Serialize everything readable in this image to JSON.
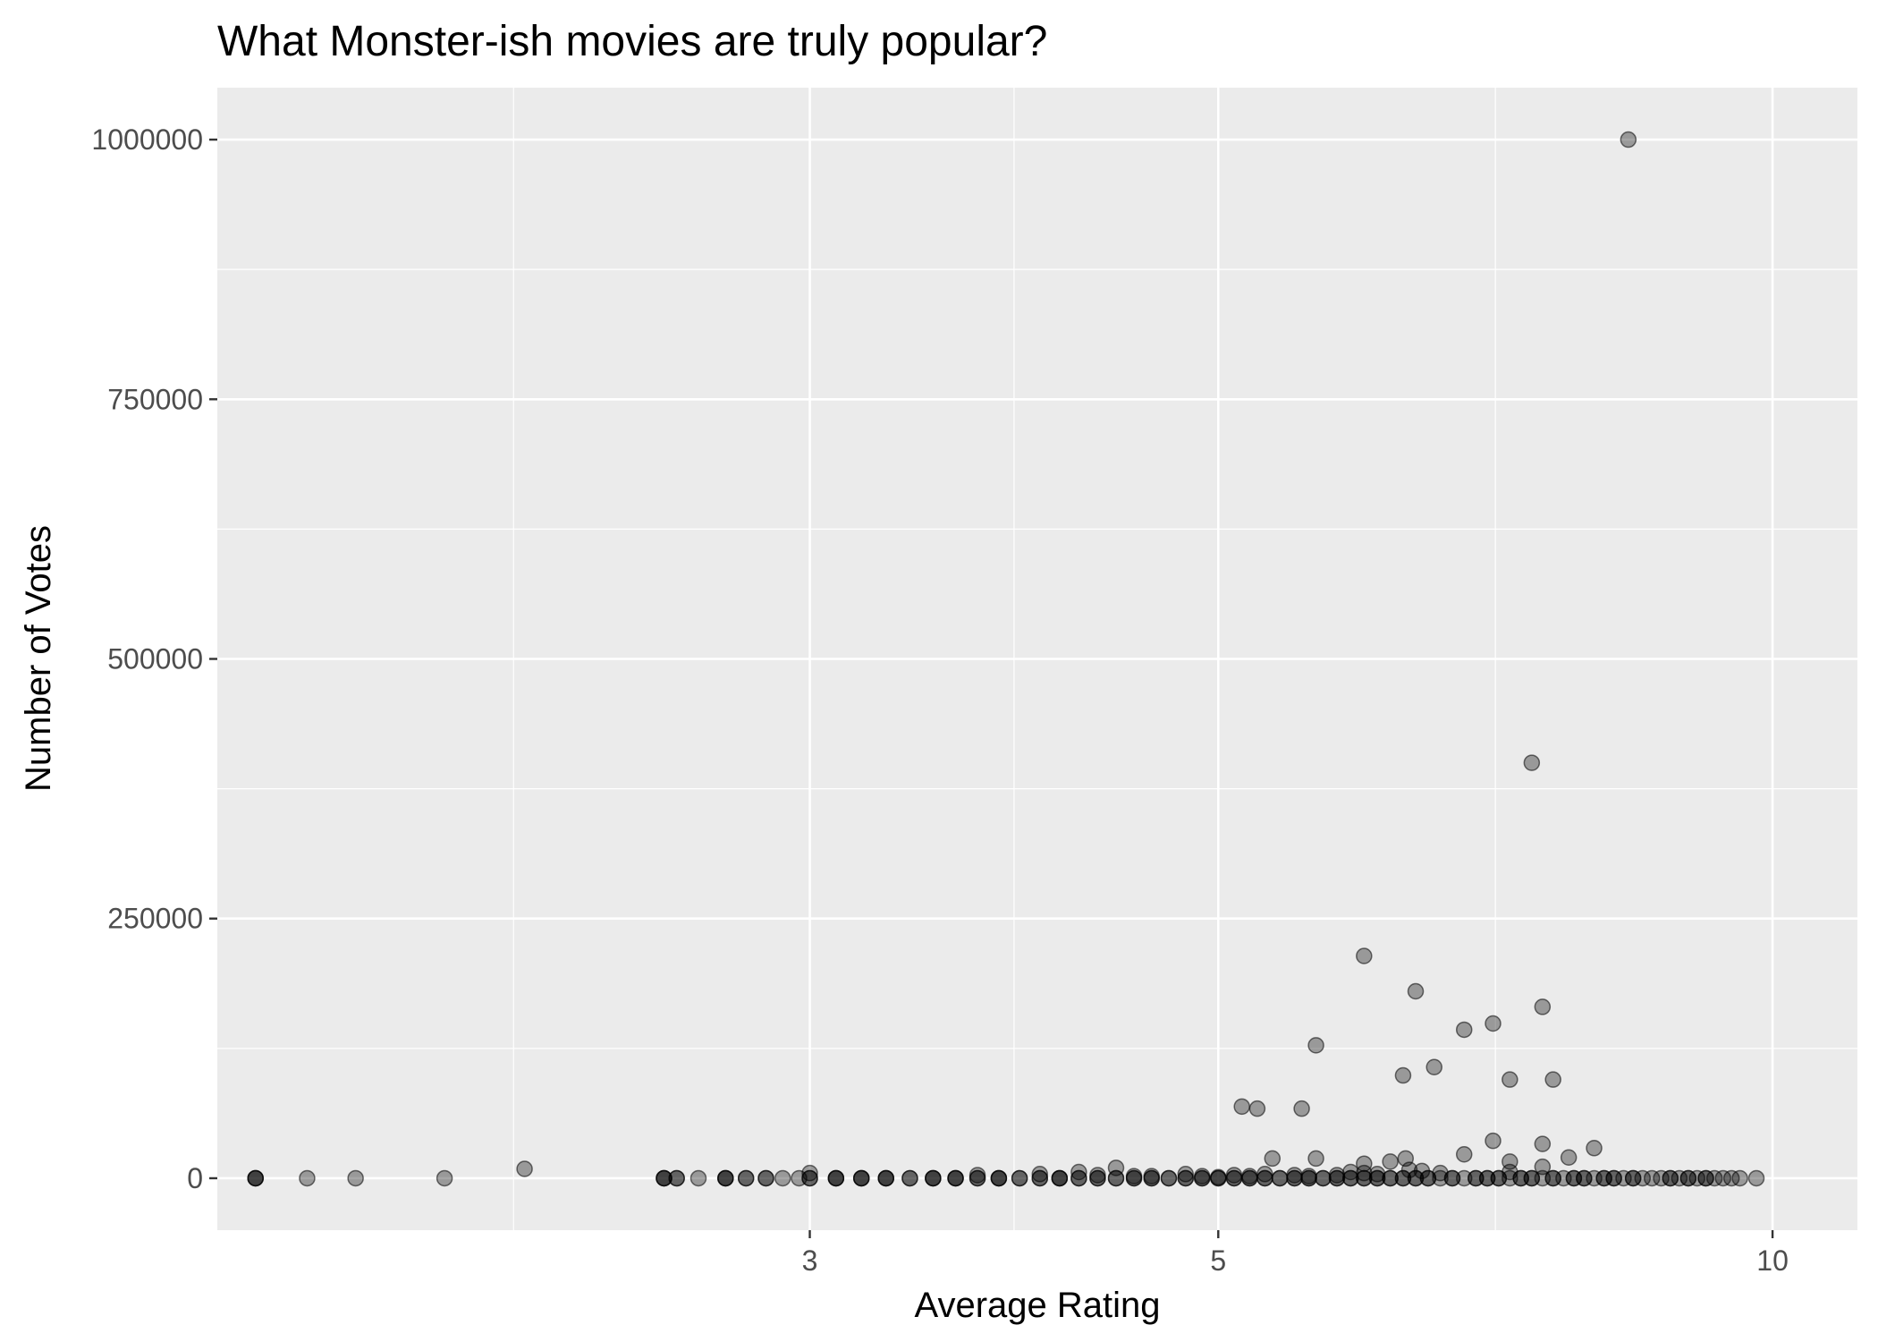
{
  "chart_data": {
    "type": "scatter",
    "title": "What Monster-ish movies are truly popular?",
    "xlabel": "Average Rating",
    "ylabel": "Number of Votes",
    "x_scale": "log10",
    "xlim": [
      1.43,
      11.12
    ],
    "ylim": [
      -50000,
      1050000
    ],
    "x_ticks": [
      3,
      5,
      10
    ],
    "x_tick_labels": [
      "3",
      "5",
      "10"
    ],
    "y_ticks": [
      0,
      250000,
      500000,
      750000,
      1000000
    ],
    "y_tick_labels": [
      "0",
      "250000",
      "500000",
      "750000",
      "1000000"
    ],
    "grid": true,
    "legend": "none",
    "point_color": "#000000",
    "point_alpha": 0.35,
    "panel_background": "#ebebeb",
    "grid_color": "#ffffff",
    "points": [
      {
        "x": 1.5,
        "y": 0
      },
      {
        "x": 1.5,
        "y": 0
      },
      {
        "x": 1.5,
        "y": 0
      },
      {
        "x": 1.6,
        "y": 0
      },
      {
        "x": 1.7,
        "y": 0
      },
      {
        "x": 1.9,
        "y": 0
      },
      {
        "x": 2.1,
        "y": 9000
      },
      {
        "x": 2.5,
        "y": 0
      },
      {
        "x": 2.5,
        "y": 0
      },
      {
        "x": 2.5,
        "y": 0
      },
      {
        "x": 2.54,
        "y": 0
      },
      {
        "x": 2.54,
        "y": 0
      },
      {
        "x": 2.61,
        "y": 0
      },
      {
        "x": 2.7,
        "y": 0
      },
      {
        "x": 2.7,
        "y": 0
      },
      {
        "x": 2.7,
        "y": 0
      },
      {
        "x": 2.77,
        "y": 0
      },
      {
        "x": 2.77,
        "y": 0
      },
      {
        "x": 2.84,
        "y": 0
      },
      {
        "x": 2.84,
        "y": 0
      },
      {
        "x": 2.9,
        "y": 0
      },
      {
        "x": 2.96,
        "y": 0
      },
      {
        "x": 3.0,
        "y": 0
      },
      {
        "x": 3.0,
        "y": 0
      },
      {
        "x": 3.0,
        "y": 5000
      },
      {
        "x": 3.1,
        "y": 0
      },
      {
        "x": 3.1,
        "y": 0
      },
      {
        "x": 3.1,
        "y": 0
      },
      {
        "x": 3.2,
        "y": 0
      },
      {
        "x": 3.2,
        "y": 0
      },
      {
        "x": 3.2,
        "y": 0
      },
      {
        "x": 3.3,
        "y": 0
      },
      {
        "x": 3.3,
        "y": 0
      },
      {
        "x": 3.3,
        "y": 0
      },
      {
        "x": 3.4,
        "y": 0
      },
      {
        "x": 3.4,
        "y": 0
      },
      {
        "x": 3.5,
        "y": 0
      },
      {
        "x": 3.5,
        "y": 0
      },
      {
        "x": 3.5,
        "y": 0
      },
      {
        "x": 3.6,
        "y": 0
      },
      {
        "x": 3.6,
        "y": 0
      },
      {
        "x": 3.6,
        "y": 0
      },
      {
        "x": 3.7,
        "y": 0
      },
      {
        "x": 3.7,
        "y": 0
      },
      {
        "x": 3.7,
        "y": 3000
      },
      {
        "x": 3.8,
        "y": 0
      },
      {
        "x": 3.8,
        "y": 0
      },
      {
        "x": 3.8,
        "y": 0
      },
      {
        "x": 3.9,
        "y": 0
      },
      {
        "x": 3.9,
        "y": 0
      },
      {
        "x": 4.0,
        "y": 0
      },
      {
        "x": 4.0,
        "y": 0
      },
      {
        "x": 4.0,
        "y": 4000
      },
      {
        "x": 4.1,
        "y": 0
      },
      {
        "x": 4.1,
        "y": 0
      },
      {
        "x": 4.1,
        "y": 0
      },
      {
        "x": 4.2,
        "y": 0
      },
      {
        "x": 4.2,
        "y": 0
      },
      {
        "x": 4.2,
        "y": 6000
      },
      {
        "x": 4.3,
        "y": 0
      },
      {
        "x": 4.3,
        "y": 0
      },
      {
        "x": 4.3,
        "y": 3000
      },
      {
        "x": 4.4,
        "y": 0
      },
      {
        "x": 4.4,
        "y": 0
      },
      {
        "x": 4.4,
        "y": 10000
      },
      {
        "x": 4.5,
        "y": 0
      },
      {
        "x": 4.5,
        "y": 0
      },
      {
        "x": 4.5,
        "y": 2000
      },
      {
        "x": 4.6,
        "y": 0
      },
      {
        "x": 4.6,
        "y": 0
      },
      {
        "x": 4.6,
        "y": 2000
      },
      {
        "x": 4.7,
        "y": 0
      },
      {
        "x": 4.7,
        "y": 0
      },
      {
        "x": 4.8,
        "y": 0
      },
      {
        "x": 4.8,
        "y": 0
      },
      {
        "x": 4.8,
        "y": 4000
      },
      {
        "x": 4.9,
        "y": 0
      },
      {
        "x": 4.9,
        "y": 0
      },
      {
        "x": 4.9,
        "y": 2000
      },
      {
        "x": 5.0,
        "y": 0
      },
      {
        "x": 5.0,
        "y": 0
      },
      {
        "x": 5.0,
        "y": 1000
      },
      {
        "x": 5.1,
        "y": 0
      },
      {
        "x": 5.1,
        "y": 0
      },
      {
        "x": 5.1,
        "y": 3000
      },
      {
        "x": 5.2,
        "y": 0
      },
      {
        "x": 5.2,
        "y": 0
      },
      {
        "x": 5.2,
        "y": 2000
      },
      {
        "x": 5.15,
        "y": 69000
      },
      {
        "x": 5.25,
        "y": 67000
      },
      {
        "x": 5.3,
        "y": 0
      },
      {
        "x": 5.3,
        "y": 0
      },
      {
        "x": 5.3,
        "y": 4000
      },
      {
        "x": 5.35,
        "y": 19000
      },
      {
        "x": 5.4,
        "y": 0
      },
      {
        "x": 5.4,
        "y": 0
      },
      {
        "x": 5.5,
        "y": 0
      },
      {
        "x": 5.5,
        "y": 0
      },
      {
        "x": 5.5,
        "y": 3000
      },
      {
        "x": 5.55,
        "y": 67000
      },
      {
        "x": 5.6,
        "y": 0
      },
      {
        "x": 5.6,
        "y": 0
      },
      {
        "x": 5.6,
        "y": 2000
      },
      {
        "x": 5.65,
        "y": 128000
      },
      {
        "x": 5.65,
        "y": 19000
      },
      {
        "x": 5.7,
        "y": 0
      },
      {
        "x": 5.7,
        "y": 0
      },
      {
        "x": 5.8,
        "y": 0
      },
      {
        "x": 5.8,
        "y": 0
      },
      {
        "x": 5.8,
        "y": 3000
      },
      {
        "x": 5.9,
        "y": 0
      },
      {
        "x": 5.9,
        "y": 0
      },
      {
        "x": 5.9,
        "y": 6000
      },
      {
        "x": 6.0,
        "y": 0
      },
      {
        "x": 6.0,
        "y": 0
      },
      {
        "x": 6.0,
        "y": 214000
      },
      {
        "x": 6.0,
        "y": 14000
      },
      {
        "x": 6.0,
        "y": 5000
      },
      {
        "x": 6.1,
        "y": 0
      },
      {
        "x": 6.1,
        "y": 0
      },
      {
        "x": 6.1,
        "y": 4000
      },
      {
        "x": 6.2,
        "y": 0
      },
      {
        "x": 6.2,
        "y": 0
      },
      {
        "x": 6.2,
        "y": 16000
      },
      {
        "x": 6.3,
        "y": 0
      },
      {
        "x": 6.3,
        "y": 0
      },
      {
        "x": 6.3,
        "y": 99000
      },
      {
        "x": 6.32,
        "y": 19000
      },
      {
        "x": 6.35,
        "y": 8000
      },
      {
        "x": 6.4,
        "y": 0
      },
      {
        "x": 6.4,
        "y": 0
      },
      {
        "x": 6.4,
        "y": 180000
      },
      {
        "x": 6.45,
        "y": 7000
      },
      {
        "x": 6.5,
        "y": 0
      },
      {
        "x": 6.5,
        "y": 0
      },
      {
        "x": 6.55,
        "y": 107000
      },
      {
        "x": 6.6,
        "y": 0
      },
      {
        "x": 6.6,
        "y": 5000
      },
      {
        "x": 6.7,
        "y": 0
      },
      {
        "x": 6.7,
        "y": 0
      },
      {
        "x": 6.8,
        "y": 0
      },
      {
        "x": 6.8,
        "y": 143000
      },
      {
        "x": 6.8,
        "y": 23000
      },
      {
        "x": 6.9,
        "y": 0
      },
      {
        "x": 6.9,
        "y": 0
      },
      {
        "x": 7.0,
        "y": 0
      },
      {
        "x": 7.0,
        "y": 0
      },
      {
        "x": 7.05,
        "y": 149000
      },
      {
        "x": 7.05,
        "y": 36000
      },
      {
        "x": 7.1,
        "y": 0
      },
      {
        "x": 7.1,
        "y": 0
      },
      {
        "x": 7.2,
        "y": 0
      },
      {
        "x": 7.2,
        "y": 95000
      },
      {
        "x": 7.2,
        "y": 16000
      },
      {
        "x": 7.2,
        "y": 6000
      },
      {
        "x": 7.3,
        "y": 0
      },
      {
        "x": 7.3,
        "y": 0
      },
      {
        "x": 7.4,
        "y": 0
      },
      {
        "x": 7.4,
        "y": 0
      },
      {
        "x": 7.4,
        "y": 400000
      },
      {
        "x": 7.5,
        "y": 0
      },
      {
        "x": 7.5,
        "y": 165000
      },
      {
        "x": 7.5,
        "y": 33000
      },
      {
        "x": 7.5,
        "y": 11000
      },
      {
        "x": 7.6,
        "y": 0
      },
      {
        "x": 7.6,
        "y": 0
      },
      {
        "x": 7.6,
        "y": 95000
      },
      {
        "x": 7.7,
        "y": 0
      },
      {
        "x": 7.75,
        "y": 20000
      },
      {
        "x": 7.8,
        "y": 0
      },
      {
        "x": 7.8,
        "y": 0
      },
      {
        "x": 7.9,
        "y": 0
      },
      {
        "x": 7.9,
        "y": 0
      },
      {
        "x": 8.0,
        "y": 0
      },
      {
        "x": 8.0,
        "y": 29000
      },
      {
        "x": 8.1,
        "y": 0
      },
      {
        "x": 8.1,
        "y": 0
      },
      {
        "x": 8.2,
        "y": 0
      },
      {
        "x": 8.2,
        "y": 0
      },
      {
        "x": 8.3,
        "y": 0
      },
      {
        "x": 8.35,
        "y": 1000000
      },
      {
        "x": 8.4,
        "y": 0
      },
      {
        "x": 8.4,
        "y": 0
      },
      {
        "x": 8.5,
        "y": 0
      },
      {
        "x": 8.6,
        "y": 0
      },
      {
        "x": 8.7,
        "y": 0
      },
      {
        "x": 8.8,
        "y": 0
      },
      {
        "x": 8.8,
        "y": 0
      },
      {
        "x": 8.9,
        "y": 0
      },
      {
        "x": 9.0,
        "y": 0
      },
      {
        "x": 9.0,
        "y": 0
      },
      {
        "x": 9.1,
        "y": 0
      },
      {
        "x": 9.2,
        "y": 0
      },
      {
        "x": 9.2,
        "y": 0
      },
      {
        "x": 9.3,
        "y": 0
      },
      {
        "x": 9.4,
        "y": 0
      },
      {
        "x": 9.5,
        "y": 0
      },
      {
        "x": 9.6,
        "y": 0
      },
      {
        "x": 9.8,
        "y": 0
      }
    ]
  }
}
